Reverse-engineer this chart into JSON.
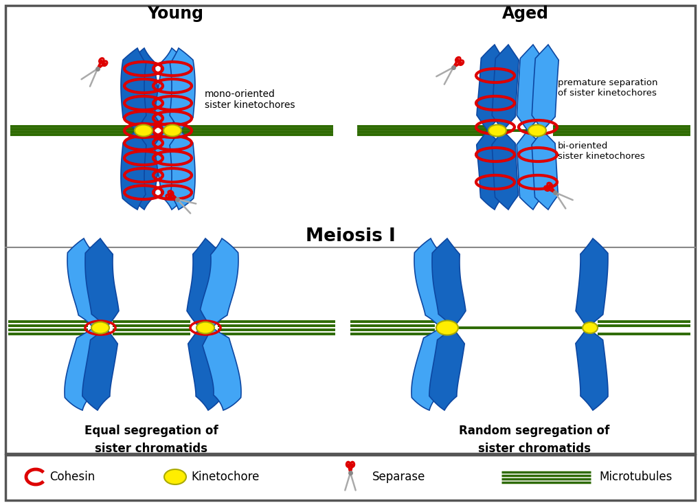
{
  "title_young": "Young",
  "title_aged": "Aged",
  "title_meiosis": "Meiosis I",
  "label_equal": "Equal segregation of\nsister chromatids",
  "label_random": "Random segregation of\nsister chromatids",
  "label_mono": "mono-oriented\nsister kinetochores",
  "label_premature": "premature separation\nof sister kinetochores",
  "label_bi": "bi-oriented\nsister kinetochores",
  "legend_cohesin": "Cohesin",
  "legend_kinetochore": "Kinetochore",
  "legend_separase": "Separase",
  "legend_microtubules": "Microtubules",
  "dark_blue": "#1565c0",
  "light_blue": "#42a5f5",
  "red": "#dd0000",
  "yellow": "#ffee00",
  "green": "#2d6a00",
  "text_color": "#000000",
  "title_fontsize": 17,
  "label_fontsize": 12,
  "legend_fontsize": 12
}
